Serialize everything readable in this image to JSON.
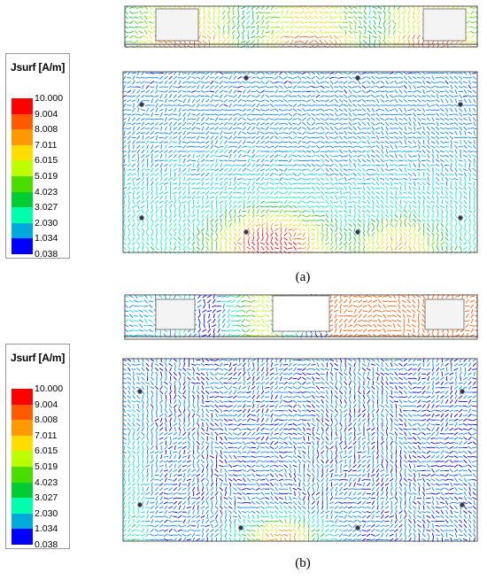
{
  "legend": {
    "title": "Jsurf [A/m]",
    "ticks": [
      "10.000",
      "9.004",
      "8.008",
      "7.011",
      "6.015",
      "5.019",
      "4.023",
      "3.027",
      "2.030",
      "1.034",
      "0.038"
    ],
    "colors": [
      "#ff0000",
      "#ff5a00",
      "#ff9900",
      "#ffdd00",
      "#bbff00",
      "#4cdd00",
      "#00cc33",
      "#00ffaa",
      "#00dddd",
      "#0088ff",
      "#0000ff"
    ]
  },
  "panels": [
    {
      "caption": "(a)"
    },
    {
      "caption": "(b)"
    }
  ]
}
